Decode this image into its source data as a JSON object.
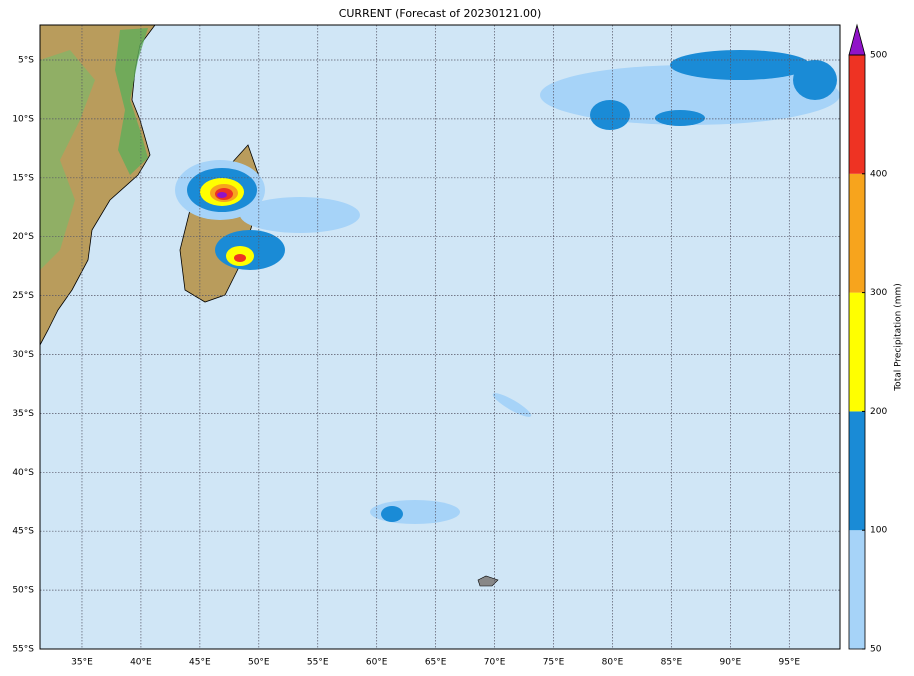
{
  "map": {
    "title": "CURRENT (Forecast of 20230121.00)",
    "lonlim": [
      31.44,
      99.3
    ],
    "latlim": [
      -55,
      -2.03
    ],
    "lat_ticks": [
      {
        "value": -5,
        "label": "5°S"
      },
      {
        "value": -10,
        "label": "10°S"
      },
      {
        "value": -15,
        "label": "15°S"
      },
      {
        "value": -20,
        "label": "20°S"
      },
      {
        "value": -25,
        "label": "25°S"
      },
      {
        "value": -30,
        "label": "30°S"
      },
      {
        "value": -35,
        "label": "35°S"
      },
      {
        "value": -40,
        "label": "40°S"
      },
      {
        "value": -45,
        "label": "45°S"
      },
      {
        "value": -50,
        "label": "50°S"
      },
      {
        "value": -55,
        "label": "55°S"
      }
    ],
    "lon_ticks": [
      {
        "value": 35,
        "label": "35°E"
      },
      {
        "value": 40,
        "label": "40°E"
      },
      {
        "value": 45,
        "label": "45°E"
      },
      {
        "value": 50,
        "label": "50°E"
      },
      {
        "value": 55,
        "label": "55°E"
      },
      {
        "value": 60,
        "label": "60°E"
      },
      {
        "value": 65,
        "label": "65°E"
      },
      {
        "value": 70,
        "label": "70°E"
      },
      {
        "value": 75,
        "label": "75°E"
      },
      {
        "value": 80,
        "label": "80°E"
      },
      {
        "value": 85,
        "label": "85°E"
      },
      {
        "value": 90,
        "label": "90°E"
      },
      {
        "value": 95,
        "label": "95°E"
      }
    ],
    "grid": true,
    "colorbar": {
      "label": "Total Precipitation (mm)",
      "ticks": [
        50,
        100,
        200,
        300,
        400,
        500
      ],
      "colors": [
        "#a6d3f8",
        "#1a8bd6",
        "#ffff00",
        "#f7a41d",
        "#ee3323"
      ],
      "extend_color": "#9013c8"
    }
  }
}
